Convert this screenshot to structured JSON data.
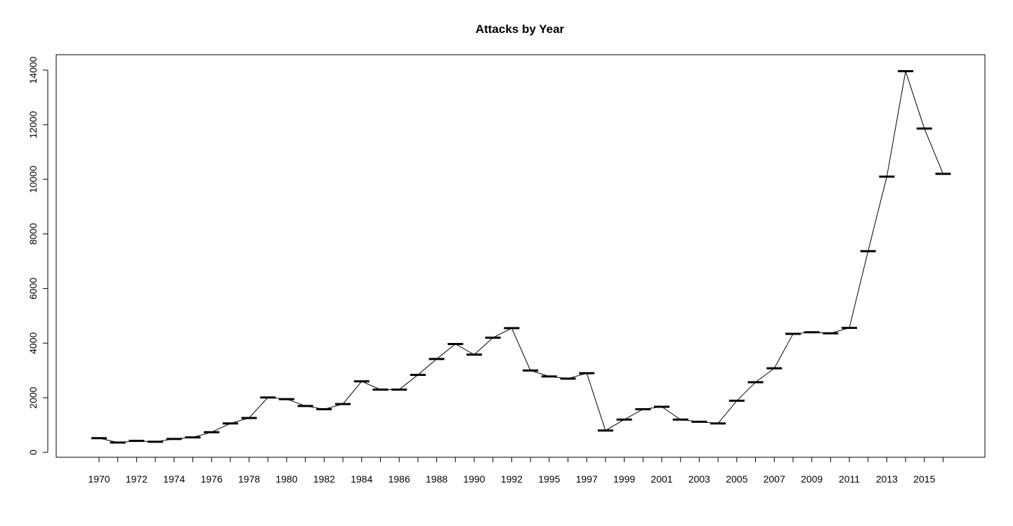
{
  "chart_data": {
    "type": "line",
    "title": "Attacks by Year",
    "xlabel": "",
    "ylabel": "",
    "ylim": [
      0,
      14000
    ],
    "y_ticks": [
      0,
      2000,
      4000,
      6000,
      8000,
      10000,
      12000,
      14000
    ],
    "x_tick_labels": [
      "1970",
      "1972",
      "1974",
      "1976",
      "1978",
      "1980",
      "1982",
      "1984",
      "1986",
      "1988",
      "1990",
      "1992",
      "1995",
      "1997",
      "1999",
      "2001",
      "2003",
      "2005",
      "2007",
      "2009",
      "2011",
      "2013",
      "2015"
    ],
    "grid": false,
    "legend": "none",
    "marker": "horizontal-bar",
    "x": [
      "1970",
      "1971",
      "1972",
      "1973",
      "1974",
      "1975",
      "1976",
      "1977",
      "1978",
      "1979",
      "1980",
      "1981",
      "1982",
      "1983",
      "1984",
      "1985",
      "1986",
      "1987",
      "1988",
      "1989",
      "1990",
      "1991",
      "1992",
      "1994",
      "1995",
      "1996",
      "1997",
      "1998",
      "1999",
      "2000",
      "2001",
      "2002",
      "2003",
      "2004",
      "2005",
      "2006",
      "2007",
      "2008",
      "2009",
      "2010",
      "2011",
      "2012",
      "2013",
      "2014",
      "2015",
      "2016"
    ],
    "values": [
      520,
      360,
      420,
      390,
      490,
      550,
      740,
      1060,
      1260,
      2010,
      1950,
      1700,
      1580,
      1770,
      2600,
      2300,
      2300,
      2840,
      3420,
      3970,
      3580,
      4200,
      4550,
      3000,
      2780,
      2700,
      2900,
      800,
      1200,
      1580,
      1670,
      1200,
      1120,
      1060,
      1890,
      2570,
      3080,
      4340,
      4400,
      4360,
      4560,
      7370,
      10100,
      13960,
      11860,
      10200
    ]
  }
}
